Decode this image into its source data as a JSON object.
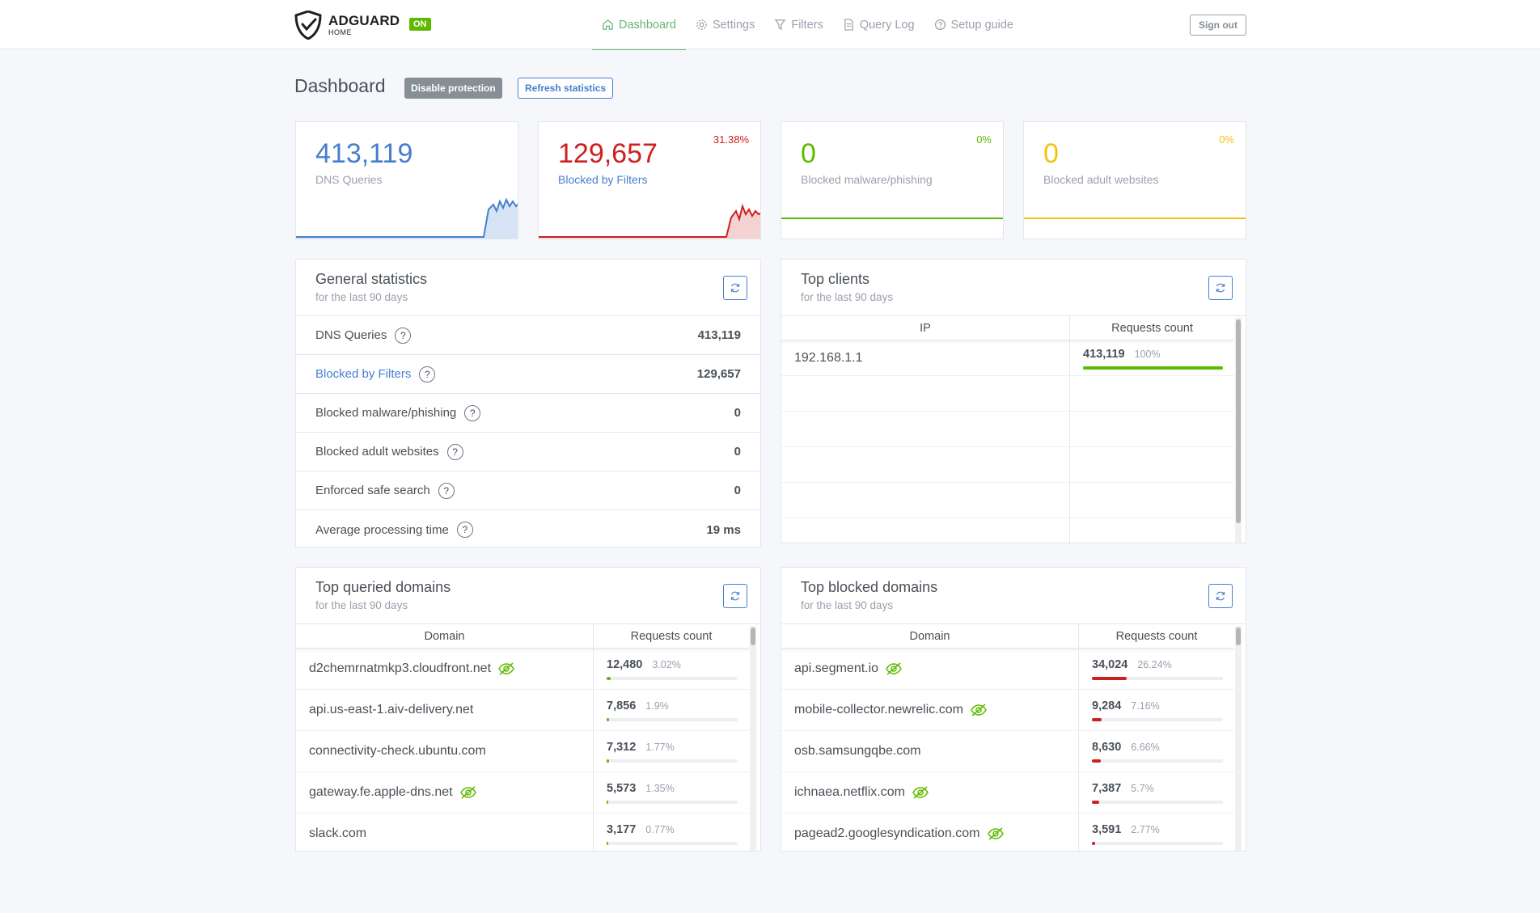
{
  "app": {
    "logo_main": "ADGUARD",
    "logo_sub": "HOME",
    "status_badge": "ON"
  },
  "nav": {
    "items": [
      {
        "label": "Dashboard",
        "icon": "home-icon",
        "active": true
      },
      {
        "label": "Settings",
        "icon": "gear-icon"
      },
      {
        "label": "Filters",
        "icon": "filter-icon"
      },
      {
        "label": "Query Log",
        "icon": "document-icon"
      },
      {
        "label": "Setup guide",
        "icon": "help-circle-icon"
      }
    ],
    "signout": "Sign out"
  },
  "page": {
    "title": "Dashboard",
    "disable_btn": "Disable protection",
    "refresh_btn": "Refresh statistics"
  },
  "counters": [
    {
      "value": "413,119",
      "label": "DNS Queries",
      "percent": "",
      "color": "#467fcf"
    },
    {
      "value": "129,657",
      "label": "Blocked by Filters",
      "percent": "31.38%",
      "color": "#cd201f"
    },
    {
      "value": "0",
      "label": "Blocked malware/phishing",
      "percent": "0%",
      "color": "#5eba00"
    },
    {
      "value": "0",
      "label": "Blocked adult websites",
      "percent": "0%",
      "color": "#f1c40f"
    }
  ],
  "general": {
    "title": "General statistics",
    "subtitle": "for the last 90 days",
    "rows": [
      {
        "label": "DNS Queries",
        "value": "413,119"
      },
      {
        "label": "Blocked by Filters",
        "value": "129,657"
      },
      {
        "label": "Blocked malware/phishing",
        "value": "0"
      },
      {
        "label": "Blocked adult websites",
        "value": "0"
      },
      {
        "label": "Enforced safe search",
        "value": "0"
      },
      {
        "label": "Average processing time",
        "value": "19 ms"
      }
    ]
  },
  "clients": {
    "title": "Top clients",
    "subtitle": "for the last 90 days",
    "col_ip": "IP",
    "col_count": "Requests count",
    "rows": [
      {
        "ip": "192.168.1.1",
        "count": "413,119",
        "percent": "100%",
        "fraction": 1.0
      }
    ]
  },
  "queried": {
    "title": "Top queried domains",
    "subtitle": "for the last 90 days",
    "col_domain": "Domain",
    "col_count": "Requests count",
    "rows": [
      {
        "domain": "d2chemrnatmkp3.cloudfront.net",
        "tracker": true,
        "count": "12,480",
        "percent": "3.02%",
        "fraction": 0.0302
      },
      {
        "domain": "api.us-east-1.aiv-delivery.net",
        "tracker": false,
        "count": "7,856",
        "percent": "1.9%",
        "fraction": 0.019
      },
      {
        "domain": "connectivity-check.ubuntu.com",
        "tracker": false,
        "count": "7,312",
        "percent": "1.77%",
        "fraction": 0.0177
      },
      {
        "domain": "gateway.fe.apple-dns.net",
        "tracker": true,
        "count": "5,573",
        "percent": "1.35%",
        "fraction": 0.0135
      },
      {
        "domain": "slack.com",
        "tracker": false,
        "count": "3,177",
        "percent": "0.77%",
        "fraction": 0.0077
      }
    ]
  },
  "blocked": {
    "title": "Top blocked domains",
    "subtitle": "for the last 90 days",
    "col_domain": "Domain",
    "col_count": "Requests count",
    "rows": [
      {
        "domain": "api.segment.io",
        "tracker": true,
        "count": "34,024",
        "percent": "26.24%",
        "fraction": 0.2624
      },
      {
        "domain": "mobile-collector.newrelic.com",
        "tracker": true,
        "count": "9,284",
        "percent": "7.16%",
        "fraction": 0.0716
      },
      {
        "domain": "osb.samsungqbe.com",
        "tracker": false,
        "count": "8,630",
        "percent": "6.66%",
        "fraction": 0.0666
      },
      {
        "domain": "ichnaea.netflix.com",
        "tracker": true,
        "count": "7,387",
        "percent": "5.7%",
        "fraction": 0.057
      },
      {
        "domain": "pagead2.googlesyndication.com",
        "tracker": true,
        "count": "3,591",
        "percent": "2.77%",
        "fraction": 0.0277
      }
    ]
  },
  "colors": {
    "blue": "#467fcf",
    "red": "#cd201f",
    "green": "#5eba00",
    "yellow": "#f1c40f"
  }
}
